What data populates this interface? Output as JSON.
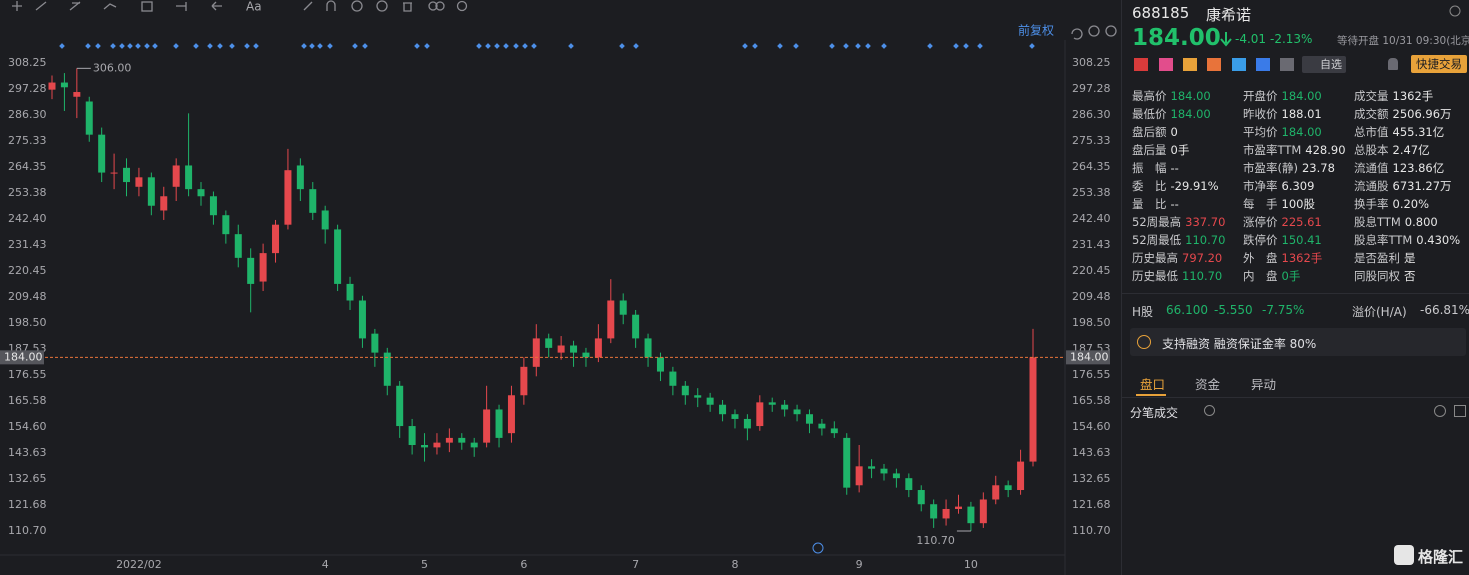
{
  "toolbar": {
    "adjust": "前复权"
  },
  "chart_data": {
    "type": "candlestick",
    "categories": [
      null,
      null,
      null,
      null,
      null,
      null,
      null,
      "2022/02",
      null,
      null,
      null,
      null,
      null,
      null,
      null,
      null,
      null,
      null,
      null,
      null,
      null,
      null,
      "4",
      null,
      null,
      null,
      null,
      null,
      null,
      null,
      "5",
      null,
      null,
      null,
      null,
      null,
      null,
      null,
      "6",
      null,
      null,
      null,
      null,
      null,
      null,
      null,
      null,
      "7",
      null,
      null,
      null,
      null,
      null,
      null,
      null,
      "8",
      null,
      null,
      null,
      null,
      null,
      null,
      null,
      null,
      null,
      "9",
      null,
      null,
      null,
      null,
      null,
      null,
      null,
      null,
      "10",
      null,
      null,
      null,
      null,
      null
    ],
    "ohlc": [
      [
        297,
        303,
        293,
        300
      ],
      [
        300,
        304,
        288,
        298
      ],
      [
        294,
        306,
        285,
        296
      ],
      [
        292,
        294,
        275,
        278
      ],
      [
        278,
        281,
        258,
        262
      ],
      [
        262,
        270,
        255,
        262
      ],
      [
        264,
        268,
        252,
        258
      ],
      [
        256,
        264,
        252,
        260
      ],
      [
        260,
        262,
        244,
        248
      ],
      [
        246,
        256,
        242,
        252
      ],
      [
        256,
        268,
        250,
        265
      ],
      [
        265,
        287,
        252,
        255
      ],
      [
        255,
        258,
        248,
        252
      ],
      [
        252,
        254,
        240,
        244
      ],
      [
        244,
        246,
        232,
        236
      ],
      [
        236,
        240,
        222,
        226
      ],
      [
        226,
        230,
        203,
        215
      ],
      [
        216,
        232,
        212,
        228
      ],
      [
        228,
        242,
        224,
        240
      ],
      [
        240,
        272,
        238,
        263
      ],
      [
        265,
        268,
        250,
        255
      ],
      [
        255,
        258,
        242,
        245
      ],
      [
        246,
        248,
        232,
        238
      ],
      [
        238,
        240,
        212,
        215
      ],
      [
        215,
        218,
        204,
        208
      ],
      [
        208,
        210,
        188,
        192
      ],
      [
        194,
        196,
        180,
        186
      ],
      [
        186,
        188,
        168,
        172
      ],
      [
        172,
        174,
        150,
        155
      ],
      [
        155,
        158,
        143,
        147
      ],
      [
        147,
        152,
        140,
        146
      ],
      [
        146,
        152,
        143,
        148
      ],
      [
        148,
        154,
        144,
        150
      ],
      [
        150,
        152,
        145,
        148
      ],
      [
        148,
        150,
        142,
        146
      ],
      [
        148,
        172,
        146,
        162
      ],
      [
        162,
        164,
        146,
        150
      ],
      [
        152,
        172,
        148,
        168
      ],
      [
        168,
        184,
        164,
        180
      ],
      [
        180,
        198,
        176,
        192
      ],
      [
        192,
        194,
        184,
        188
      ],
      [
        186,
        193,
        183,
        189
      ],
      [
        189,
        191,
        180,
        186
      ],
      [
        186,
        188,
        180,
        184
      ],
      [
        184,
        198,
        182,
        192
      ],
      [
        192,
        217,
        190,
        208
      ],
      [
        208,
        211,
        198,
        202
      ],
      [
        202,
        204,
        188,
        192
      ],
      [
        192,
        194,
        180,
        184
      ],
      [
        184,
        186,
        174,
        178
      ],
      [
        178,
        180,
        168,
        172
      ],
      [
        172,
        174,
        164,
        168
      ],
      [
        168,
        171,
        163,
        167
      ],
      [
        167,
        169,
        161,
        164
      ],
      [
        164,
        166,
        157,
        160
      ],
      [
        160,
        162,
        154,
        158
      ],
      [
        158,
        160,
        149,
        154
      ],
      [
        155,
        168,
        153,
        165
      ],
      [
        165,
        167,
        161,
        164
      ],
      [
        164,
        166,
        159,
        162
      ],
      [
        162,
        164,
        157,
        160
      ],
      [
        160,
        162,
        152,
        156
      ],
      [
        156,
        158,
        151,
        154
      ],
      [
        154,
        157,
        150,
        152
      ],
      [
        150,
        152,
        126,
        129
      ],
      [
        130,
        147,
        127,
        138
      ],
      [
        138,
        141,
        133,
        137
      ],
      [
        137,
        139,
        132,
        135
      ],
      [
        135,
        137,
        129,
        133
      ],
      [
        133,
        135,
        125,
        128
      ],
      [
        128,
        130,
        119,
        122
      ],
      [
        122,
        124,
        112,
        116
      ],
      [
        116,
        124,
        113,
        120
      ],
      [
        120,
        126,
        118,
        121
      ],
      [
        121,
        123,
        110.7,
        114
      ],
      [
        114,
        127,
        112,
        124
      ],
      [
        124,
        134,
        122,
        130
      ],
      [
        130,
        132,
        125,
        128
      ],
      [
        128,
        145,
        126,
        140
      ],
      [
        140,
        196,
        138,
        184
      ]
    ],
    "up_color": "#e5484d",
    "down_color": "#1fb46a",
    "ylim": [
      102.68,
      317.96
    ],
    "yticks": [
      308.25,
      297.28,
      {
        "value": 286.3,
        "label": "286.30"
      },
      275.33,
      264.35,
      253.38,
      {
        "value": 242.4,
        "label": "242.40"
      },
      231.43,
      220.45,
      209.48,
      {
        "value": 198.5,
        "label": "198.50"
      },
      187.53,
      176.55,
      165.58,
      {
        "value": 154.6,
        "label": "154.60"
      },
      143.63,
      132.65,
      121.68,
      {
        "value": 110.7,
        "label": "110.70"
      }
    ],
    "last_price": {
      "value": 184,
      "label": "184.00"
    },
    "high_note": {
      "value": 306,
      "label": "306.00"
    },
    "low_note": {
      "value": 110.7,
      "label": "110.70"
    }
  },
  "quote": {
    "code": "688185",
    "name": "康希诺",
    "price": "184.00",
    "change": "-4.01",
    "change_pct": "-2.13%",
    "status": "等待开盘 10/31 09:30(北京)"
  },
  "buttons": {
    "watch": "自选",
    "trade": "快捷交易"
  },
  "stats": [
    [
      {
        "label": "最高价",
        "value": "184.00",
        "color": "#1fb46a"
      },
      {
        "label": "最低价",
        "value": "184.00",
        "color": "#1fb46a"
      },
      {
        "label": "盘后额",
        "value": "0"
      },
      {
        "label": "盘后量",
        "value": "0手"
      },
      {
        "label": "振　幅",
        "value": "--"
      },
      {
        "label": "委　比",
        "value": "-29.91%"
      },
      {
        "label": "量　比",
        "value": "--"
      },
      {
        "label": "52周最高",
        "value": "337.70",
        "color": "#e5484d"
      },
      {
        "label": "52周最低",
        "value": "110.70",
        "color": "#1fb46a"
      },
      {
        "label": "历史最高",
        "value": "797.20",
        "color": "#e5484d"
      },
      {
        "label": "历史最低",
        "value": "110.70",
        "color": "#1fb46a"
      }
    ],
    [
      {
        "label": "开盘价",
        "value": "184.00",
        "color": "#1fb46a"
      },
      {
        "label": "昨收价",
        "value": "188.01"
      },
      {
        "label": "平均价",
        "value": "184.00",
        "color": "#1fb46a"
      },
      {
        "label": "市盈率TTM",
        "value": "428.90"
      },
      {
        "label": "市盈率(静)",
        "value": "23.78"
      },
      {
        "label": "市净率",
        "value": "6.309"
      },
      {
        "label": "每　手",
        "value": "100股"
      },
      {
        "label": "涨停价",
        "value": "225.61",
        "color": "#e5484d"
      },
      {
        "label": "跌停价",
        "value": "150.41",
        "color": "#1fb46a"
      },
      {
        "label": "外　盘",
        "value": "1362手",
        "color": "#e5484d"
      },
      {
        "label": "内　盘",
        "value": "0手",
        "color": "#1fb46a"
      }
    ],
    [
      {
        "label": "成交量",
        "value": "1362手"
      },
      {
        "label": "成交额",
        "value": "2506.96万"
      },
      {
        "label": "总市值",
        "value": "455.31亿"
      },
      {
        "label": "总股本",
        "value": "2.47亿"
      },
      {
        "label": "流通值",
        "value": "123.86亿"
      },
      {
        "label": "流通股",
        "value": "6731.27万"
      },
      {
        "label": "换手率",
        "value": "0.20%"
      },
      {
        "label": "股息TTM",
        "value": "0.800"
      },
      {
        "label": "股息率TTM",
        "value": "0.430%"
      },
      {
        "label": "是否盈利",
        "value": "是"
      },
      {
        "label": "同股同权",
        "value": "否"
      }
    ]
  ],
  "h_share": {
    "label": "H股",
    "price": "66.100",
    "change": "-5.550",
    "change_pct": "-7.75%",
    "premium_label": "溢价(H/A)",
    "premium": "-66.81%"
  },
  "margin": "支持融资 融资保证金率 80%",
  "tabs": [
    "盘口",
    "资金",
    "异动"
  ],
  "trades_title": "分笔成交",
  "logo": "格隆汇"
}
